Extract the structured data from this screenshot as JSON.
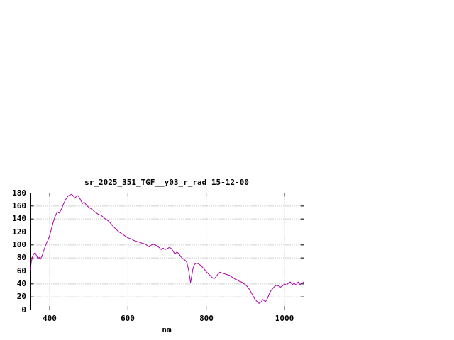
{
  "window": {
    "background": "#ffffff"
  },
  "chart_data": {
    "type": "line",
    "title": "sr_2025_351_TGF__y03_r_rad 15-12-00",
    "xlabel": "nm",
    "ylabel": "",
    "xlim": [
      350,
      1050
    ],
    "ylim": [
      0,
      180
    ],
    "xticks": [
      400,
      600,
      800,
      1000
    ],
    "yticks": [
      0,
      20,
      40,
      60,
      80,
      100,
      120,
      140,
      160,
      180
    ],
    "grid": true,
    "legend_position": "none",
    "colors": {
      "line": "#aa00aa",
      "grid": "#a0a0a0",
      "axis": "#000000",
      "background": "#ffffff"
    },
    "series": [
      {
        "name": "sr_2025_351_TGF__y03_r_rad",
        "points": [
          [
            350,
            62
          ],
          [
            353,
            74
          ],
          [
            356,
            82
          ],
          [
            360,
            87
          ],
          [
            363,
            88
          ],
          [
            366,
            84
          ],
          [
            370,
            79
          ],
          [
            373,
            81
          ],
          [
            376,
            78
          ],
          [
            380,
            82
          ],
          [
            384,
            90
          ],
          [
            388,
            97
          ],
          [
            392,
            103
          ],
          [
            396,
            108
          ],
          [
            400,
            115
          ],
          [
            404,
            124
          ],
          [
            408,
            133
          ],
          [
            412,
            141
          ],
          [
            416,
            147
          ],
          [
            420,
            151
          ],
          [
            424,
            149
          ],
          [
            428,
            153
          ],
          [
            432,
            158
          ],
          [
            436,
            164
          ],
          [
            440,
            169
          ],
          [
            444,
            173
          ],
          [
            448,
            176
          ],
          [
            452,
            177
          ],
          [
            456,
            178
          ],
          [
            460,
            176
          ],
          [
            464,
            172
          ],
          [
            468,
            175
          ],
          [
            472,
            176
          ],
          [
            476,
            173
          ],
          [
            480,
            168
          ],
          [
            484,
            164
          ],
          [
            488,
            166
          ],
          [
            492,
            163
          ],
          [
            496,
            160
          ],
          [
            500,
            158
          ],
          [
            505,
            156
          ],
          [
            510,
            154
          ],
          [
            515,
            151
          ],
          [
            520,
            149
          ],
          [
            525,
            147
          ],
          [
            530,
            146
          ],
          [
            535,
            144
          ],
          [
            540,
            141
          ],
          [
            545,
            139
          ],
          [
            550,
            137
          ],
          [
            555,
            134
          ],
          [
            560,
            130
          ],
          [
            565,
            127
          ],
          [
            570,
            124
          ],
          [
            575,
            121
          ],
          [
            580,
            119
          ],
          [
            585,
            117
          ],
          [
            590,
            115
          ],
          [
            595,
            113
          ],
          [
            600,
            111
          ],
          [
            605,
            110
          ],
          [
            610,
            109
          ],
          [
            615,
            107
          ],
          [
            620,
            106
          ],
          [
            625,
            105
          ],
          [
            630,
            104
          ],
          [
            635,
            103
          ],
          [
            640,
            102
          ],
          [
            645,
            101
          ],
          [
            650,
            99
          ],
          [
            655,
            97
          ],
          [
            660,
            100
          ],
          [
            665,
            101
          ],
          [
            670,
            100
          ],
          [
            675,
            98
          ],
          [
            680,
            96
          ],
          [
            685,
            93
          ],
          [
            690,
            95
          ],
          [
            695,
            93
          ],
          [
            700,
            94
          ],
          [
            705,
            96
          ],
          [
            710,
            95
          ],
          [
            715,
            91
          ],
          [
            720,
            86
          ],
          [
            725,
            89
          ],
          [
            730,
            87
          ],
          [
            735,
            82
          ],
          [
            740,
            79
          ],
          [
            745,
            77
          ],
          [
            750,
            74
          ],
          [
            755,
            62
          ],
          [
            758,
            50
          ],
          [
            760,
            42
          ],
          [
            763,
            52
          ],
          [
            766,
            63
          ],
          [
            770,
            70
          ],
          [
            775,
            72
          ],
          [
            780,
            71
          ],
          [
            785,
            69
          ],
          [
            790,
            66
          ],
          [
            795,
            63
          ],
          [
            800,
            59
          ],
          [
            805,
            56
          ],
          [
            810,
            53
          ],
          [
            815,
            50
          ],
          [
            820,
            48
          ],
          [
            825,
            51
          ],
          [
            830,
            55
          ],
          [
            835,
            58
          ],
          [
            840,
            57
          ],
          [
            845,
            56
          ],
          [
            850,
            55
          ],
          [
            855,
            54
          ],
          [
            860,
            53
          ],
          [
            865,
            51
          ],
          [
            870,
            49
          ],
          [
            875,
            47
          ],
          [
            880,
            46
          ],
          [
            885,
            44
          ],
          [
            890,
            43
          ],
          [
            895,
            41
          ],
          [
            900,
            39
          ],
          [
            905,
            36
          ],
          [
            910,
            32
          ],
          [
            915,
            27
          ],
          [
            920,
            21
          ],
          [
            925,
            16
          ],
          [
            930,
            13
          ],
          [
            935,
            10
          ],
          [
            940,
            12
          ],
          [
            945,
            16
          ],
          [
            948,
            14
          ],
          [
            952,
            13
          ],
          [
            956,
            17
          ],
          [
            960,
            23
          ],
          [
            965,
            29
          ],
          [
            970,
            33
          ],
          [
            975,
            36
          ],
          [
            980,
            38
          ],
          [
            985,
            37
          ],
          [
            990,
            35
          ],
          [
            995,
            37
          ],
          [
            1000,
            40
          ],
          [
            1005,
            38
          ],
          [
            1010,
            41
          ],
          [
            1015,
            43
          ],
          [
            1020,
            39
          ],
          [
            1025,
            41
          ],
          [
            1030,
            38
          ],
          [
            1035,
            43
          ],
          [
            1040,
            39
          ],
          [
            1045,
            41
          ],
          [
            1050,
            43
          ]
        ]
      }
    ]
  }
}
